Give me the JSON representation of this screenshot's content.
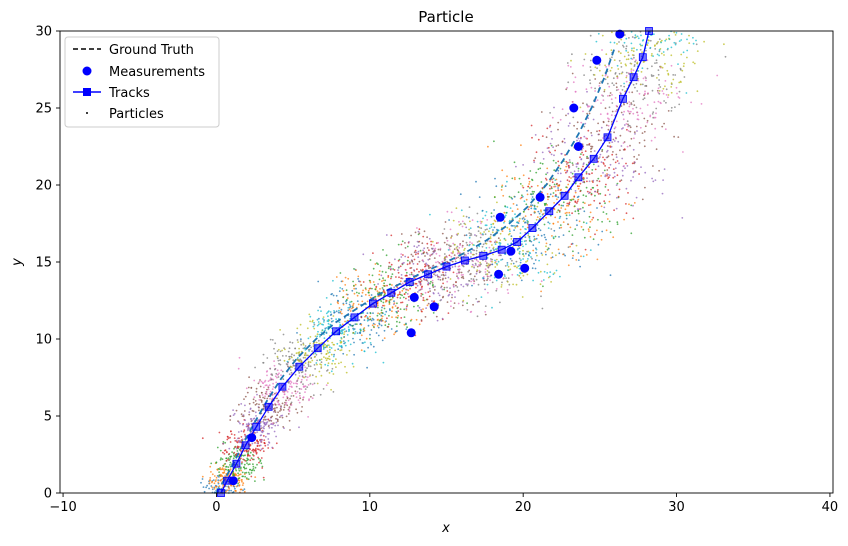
{
  "chart_data": {
    "type": "scatter",
    "title": "Particle",
    "xlabel": "x",
    "ylabel": "y",
    "xlim": [
      -10.2,
      40.2
    ],
    "ylim": [
      0,
      30
    ],
    "xticks": [
      -10,
      0,
      10,
      20,
      30,
      40
    ],
    "xtick_labels": [
      "−10",
      "0",
      "10",
      "20",
      "30",
      "40"
    ],
    "yticks": [
      0,
      5,
      10,
      15,
      20,
      25,
      30
    ],
    "ytick_labels": [
      "0",
      "5",
      "10",
      "15",
      "20",
      "25",
      "30"
    ],
    "grid": false,
    "legend_position": "top-left",
    "legend": [
      {
        "label": "Ground Truth",
        "style": "dashed-line",
        "color": "#000000"
      },
      {
        "label": "Measurements",
        "style": "circle-marker",
        "color": "#0000ff"
      },
      {
        "label": "Tracks",
        "style": "line-square-marker",
        "color": "#0000ff"
      },
      {
        "label": "Particles",
        "style": "dot",
        "color": "#000000"
      }
    ],
    "series": [
      {
        "style": "dashed",
        "color": "#1f77b4",
        "x": [
          0.0,
          0.6,
          1.2,
          1.8,
          2.5,
          3.3,
          4.2,
          5.3,
          6.5,
          7.8,
          9.2,
          10.6,
          12.0,
          13.4,
          14.8,
          16.2,
          17.6,
          19.0,
          20.3,
          21.5,
          22.6,
          23.6,
          24.5,
          25.3,
          26.0
        ],
        "y": [
          0.0,
          1.0,
          2.1,
          3.3,
          4.6,
          6.0,
          7.4,
          8.8,
          10.0,
          11.1,
          12.0,
          12.9,
          13.6,
          14.3,
          14.9,
          15.6,
          16.4,
          17.4,
          18.6,
          20.0,
          21.6,
          23.3,
          25.1,
          27.0,
          29.0
        ]
      },
      {
        "name": "Measurements",
        "style": "markers",
        "color": "#0000ff",
        "x": [
          1.1,
          2.3,
          12.7,
          14.2,
          12.9,
          18.4,
          20.1,
          19.2,
          18.5,
          21.1,
          23.6,
          23.3,
          24.8,
          26.3
        ],
        "y": [
          0.8,
          3.6,
          10.4,
          12.1,
          12.7,
          14.2,
          14.6,
          15.7,
          17.9,
          19.2,
          22.5,
          25.0,
          28.1,
          29.8
        ]
      },
      {
        "name": "Tracks",
        "style": "line-square",
        "color": "#0000ff",
        "x": [
          0.3,
          0.7,
          1.3,
          1.9,
          2.6,
          3.4,
          4.3,
          5.4,
          6.6,
          7.8,
          9.0,
          10.2,
          11.4,
          12.6,
          13.8,
          15.0,
          16.2,
          17.4,
          18.6,
          19.6,
          20.6,
          21.7,
          22.7,
          23.6,
          24.6,
          25.5,
          26.5,
          27.2,
          27.8,
          28.2
        ],
        "y": [
          0.0,
          0.8,
          1.9,
          3.1,
          4.3,
          5.6,
          6.9,
          8.2,
          9.4,
          10.5,
          11.4,
          12.3,
          13.0,
          13.7,
          14.2,
          14.7,
          15.1,
          15.4,
          15.8,
          16.3,
          17.2,
          18.3,
          19.3,
          20.5,
          21.7,
          23.1,
          25.6,
          27.0,
          28.3,
          30.0
        ]
      }
    ]
  }
}
